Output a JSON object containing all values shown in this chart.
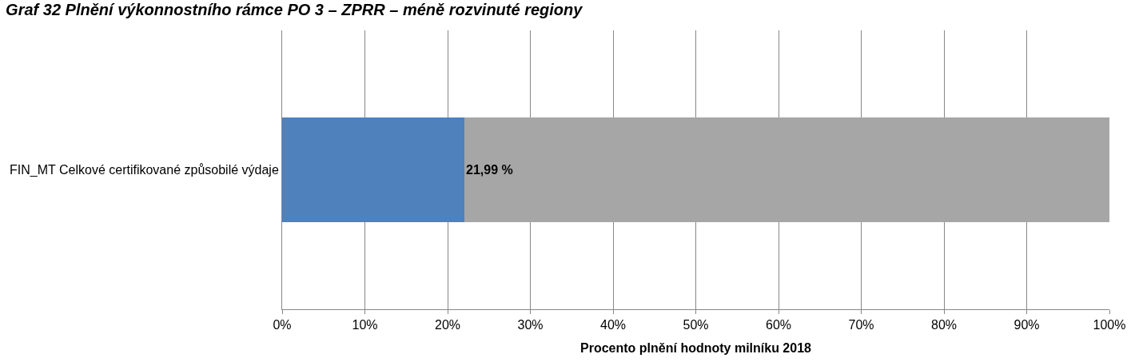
{
  "chart_data": {
    "type": "bar",
    "orientation": "horizontal",
    "stacked": true,
    "title": "Graf 32 Plnění výkonnostního rámce PO 3 – ZPRR – méně rozvinuté regiony",
    "xlabel": "Procento plnění hodnoty milníku 2018",
    "categories": [
      "FIN_MT Celkové certifikované způsobilé výdaje"
    ],
    "series": [
      {
        "color": "#4f81bd",
        "values": [
          21.99
        ],
        "value_labels": [
          "21,99 %"
        ]
      },
      {
        "color": "#a6a6a6",
        "values": [
          78.01
        ]
      }
    ],
    "xlim": [
      0,
      100
    ],
    "xticks": [
      {
        "value": 0,
        "label": "0%"
      },
      {
        "value": 10,
        "label": "10%"
      },
      {
        "value": 20,
        "label": "20%"
      },
      {
        "value": 30,
        "label": "30%"
      },
      {
        "value": 40,
        "label": "40%"
      },
      {
        "value": 50,
        "label": "50%"
      },
      {
        "value": 60,
        "label": "60%"
      },
      {
        "value": 70,
        "label": "70%"
      },
      {
        "value": 80,
        "label": "80%"
      },
      {
        "value": 90,
        "label": "90%"
      },
      {
        "value": 100,
        "label": "100%"
      }
    ],
    "grid": "x"
  }
}
